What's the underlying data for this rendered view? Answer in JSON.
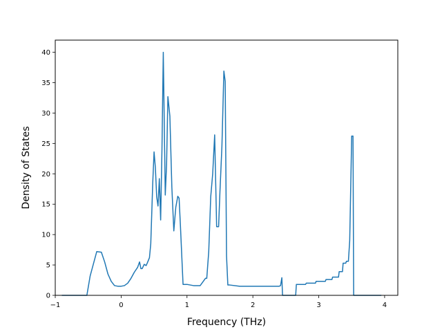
{
  "chart_data": {
    "type": "line",
    "title": "",
    "xlabel": "Frequency (THz)",
    "ylabel": "Density of States",
    "xlim": [
      -1.0,
      4.2
    ],
    "ylim": [
      0,
      42
    ],
    "xticks": [
      -1,
      0,
      1,
      2,
      3,
      4
    ],
    "yticks": [
      0,
      5,
      10,
      15,
      20,
      25,
      30,
      35,
      40
    ],
    "grid": false,
    "legend": "none",
    "series": [
      {
        "color": "#1f77b4",
        "x": [
          -0.9,
          -0.52,
          -0.47,
          -0.42,
          -0.37,
          -0.3,
          -0.25,
          -0.2,
          -0.15,
          -0.1,
          -0.05,
          0.0,
          0.05,
          0.1,
          0.15,
          0.2,
          0.25,
          0.28,
          0.3,
          0.32,
          0.35,
          0.38,
          0.4,
          0.43,
          0.45,
          0.48,
          0.5,
          0.52,
          0.54,
          0.56,
          0.58,
          0.6,
          0.62,
          0.64,
          0.67,
          0.69,
          0.71,
          0.74,
          0.77,
          0.8,
          0.83,
          0.86,
          0.88,
          0.9,
          0.94,
          1.0,
          1.1,
          1.2,
          1.28,
          1.3,
          1.33,
          1.36,
          1.39,
          1.42,
          1.45,
          1.48,
          1.5,
          1.53,
          1.56,
          1.58,
          1.6,
          1.62,
          1.65,
          1.8,
          2.0,
          2.2,
          2.4,
          2.42,
          2.44,
          2.45,
          2.5,
          2.6,
          2.65,
          2.66,
          2.8,
          2.81,
          2.95,
          2.96,
          3.1,
          3.11,
          3.2,
          3.21,
          3.3,
          3.31,
          3.36,
          3.37,
          3.41,
          3.42,
          3.45,
          3.47,
          3.5,
          3.52,
          3.53,
          3.54,
          3.55,
          3.7,
          3.95
        ],
        "y": [
          0,
          0,
          3.2,
          5.2,
          7.2,
          7.1,
          5.5,
          3.5,
          2.3,
          1.6,
          1.5,
          1.5,
          1.6,
          2.0,
          2.8,
          3.8,
          4.6,
          5.5,
          4.4,
          4.4,
          5.1,
          4.9,
          5.4,
          6.2,
          8.5,
          18.5,
          23.6,
          21.0,
          16.2,
          14.7,
          19.2,
          12.4,
          24.0,
          40.0,
          16.5,
          21.5,
          32.7,
          29.5,
          17.8,
          10.6,
          14.5,
          16.3,
          16.0,
          11.5,
          1.8,
          1.8,
          1.6,
          1.6,
          2.8,
          2.8,
          7.2,
          16.2,
          20.0,
          26.4,
          11.3,
          11.3,
          17.0,
          24.5,
          36.9,
          35.2,
          6.5,
          1.7,
          1.7,
          1.5,
          1.5,
          1.5,
          1.5,
          1.6,
          2.9,
          0,
          0,
          0,
          0,
          1.8,
          1.8,
          2.0,
          2.0,
          2.3,
          2.3,
          2.6,
          2.6,
          3.0,
          3.0,
          3.9,
          3.9,
          5.3,
          5.3,
          5.6,
          5.6,
          9.0,
          26.2,
          26.2,
          0,
          0,
          0,
          0,
          0
        ]
      }
    ]
  }
}
